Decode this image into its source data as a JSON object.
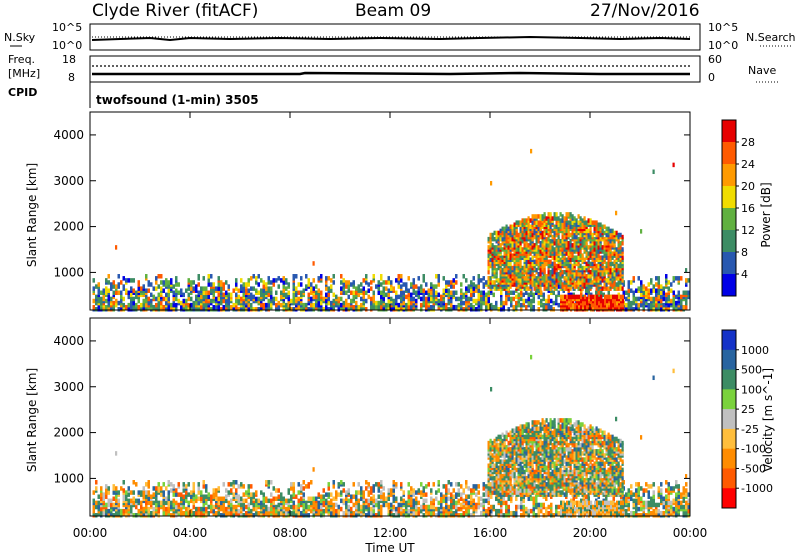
{
  "header": {
    "station": "Clyde River (fitACF)",
    "beam": "Beam 09",
    "date": "27/Nov/2016"
  },
  "panels": {
    "noise": {
      "left_label": "N.Sky",
      "left_ticks": [
        "10^5",
        "10^0"
      ],
      "right_label": "N.Search",
      "right_ticks": [
        "10^5",
        "10^0"
      ]
    },
    "freq": {
      "left_label_1": "Freq.",
      "left_label_2": "[MHz]",
      "left_ticks": [
        "18",
        "8"
      ],
      "right_label": "Nave",
      "right_ticks": [
        "60",
        "0"
      ]
    },
    "cpid": {
      "label": "CPID",
      "text": "twofsound (1-min) 3505"
    }
  },
  "colors": {
    "power_scale": [
      "#0000e6",
      "#2858b0",
      "#3c8c64",
      "#60b040",
      "#f0dc00",
      "#ff9a00",
      "#ff5a00",
      "#e60000"
    ],
    "velocity_scale": [
      "#ff0000",
      "#ff5a00",
      "#ff8c00",
      "#ffbe3c",
      "#c0c0c0",
      "#7ad23c",
      "#3c8c64",
      "#2864a0",
      "#1432c8"
    ]
  },
  "chart_data": [
    {
      "type": "heatmap",
      "title": "",
      "quantity": "Power",
      "colorbar_label": "Power [dB]",
      "colorbar_ticks": [
        "4",
        "8",
        "12",
        "16",
        "20",
        "24",
        "28"
      ],
      "xlabel": "",
      "ylabel": "Slant Range [km]",
      "yticks": [
        "1000",
        "2000",
        "3000",
        "4000"
      ],
      "ylim": [
        180,
        4500
      ],
      "xlim": [
        "00:00",
        "24:00"
      ],
      "scatter_regions": [
        {
          "t_start_h": 0.0,
          "t_end_h": 15.8,
          "range_km": [
            180,
            900
          ],
          "dominant": "noisy blue/green/orange near-range echoes"
        },
        {
          "t_start_h": 15.9,
          "t_end_h": 21.3,
          "range_km": [
            700,
            2400
          ],
          "dominant": "orange/red with green"
        },
        {
          "t_start_h": 18.8,
          "t_end_h": 21.3,
          "range_km": [
            180,
            500
          ],
          "dominant": "red near-range band"
        }
      ]
    },
    {
      "type": "heatmap",
      "title": "",
      "quantity": "Velocity",
      "colorbar_label": "Velocity [m s^-1]",
      "colorbar_ticks": [
        "1000",
        "500",
        "100",
        "25",
        "-25",
        "-100",
        "-500",
        "-1000"
      ],
      "xlabel": "Time UT",
      "ylabel": "Slant Range [km]",
      "yticks": [
        "1000",
        "2000",
        "3000",
        "4000"
      ],
      "ylim": [
        180,
        4500
      ],
      "xticks": [
        "00:00",
        "04:00",
        "08:00",
        "12:00",
        "16:00",
        "20:00",
        "00:00"
      ],
      "scatter_regions": [
        {
          "t_start_h": 0.0,
          "t_end_h": 15.8,
          "range_km": [
            180,
            900
          ],
          "dominant": "orange/green mixed near-range"
        },
        {
          "t_start_h": 15.9,
          "t_end_h": 21.3,
          "range_km": [
            700,
            2400
          ],
          "dominant": "orange above green core"
        }
      ]
    }
  ]
}
